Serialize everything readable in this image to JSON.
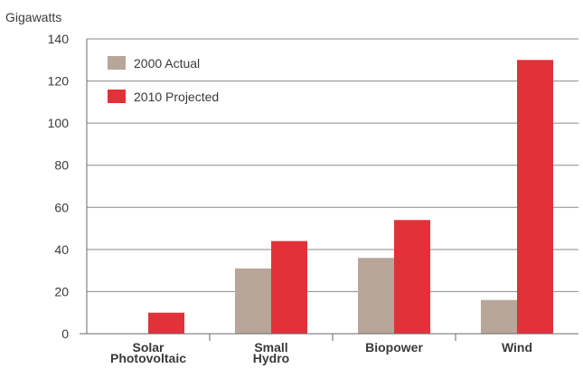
{
  "chart_data": {
    "type": "bar",
    "ylabel": "Gigawatts",
    "xlabel": "",
    "title": "",
    "categories": [
      [
        "Solar",
        "Photovoltaic"
      ],
      [
        "Small",
        "Hydro"
      ],
      [
        "Biopower"
      ],
      [
        "Wind"
      ]
    ],
    "series": [
      {
        "name": "2000 Actual",
        "color": "#b7a699",
        "values": [
          0,
          31,
          36,
          16
        ]
      },
      {
        "name": "2010 Projected",
        "color": "#e3313a",
        "values": [
          10,
          44,
          54,
          130
        ]
      }
    ],
    "ylim": [
      0,
      140
    ],
    "yticks": [
      0,
      20,
      40,
      60,
      80,
      100,
      120,
      140
    ],
    "grid": true,
    "legend_position": "top-left"
  }
}
